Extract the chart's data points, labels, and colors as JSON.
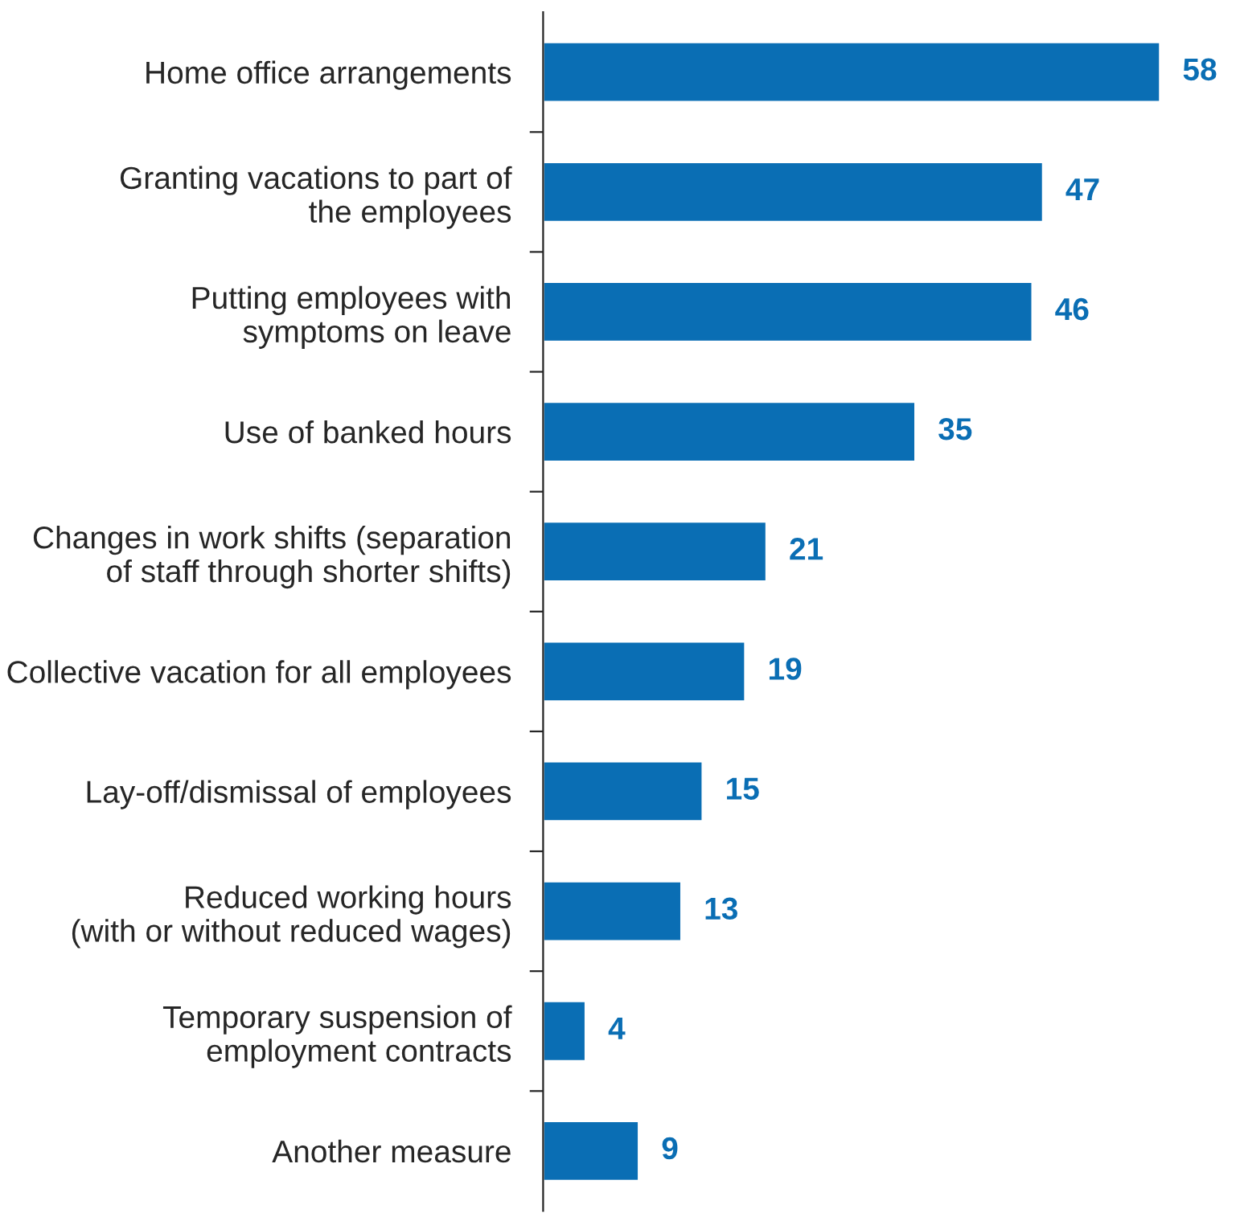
{
  "chart_data": {
    "type": "bar",
    "orientation": "horizontal",
    "data_labels": true,
    "color": "#0a6eb4",
    "categories": [
      "Home office arrangements",
      "Granting vacations to part of\nthe employees",
      "Putting employees with\nsymptoms on leave",
      "Use of banked hours",
      "Changes in work shifts (separation\nof staff through shorter shifts)",
      "Collective vacation for all employees",
      "Lay-off/dismissal of employees",
      "Reduced working hours\n(with or without reduced wages)",
      "Temporary suspension of\nemployment contracts",
      "Another measure"
    ],
    "values": [
      58,
      47,
      46,
      35,
      21,
      19,
      15,
      13,
      4,
      9
    ]
  }
}
